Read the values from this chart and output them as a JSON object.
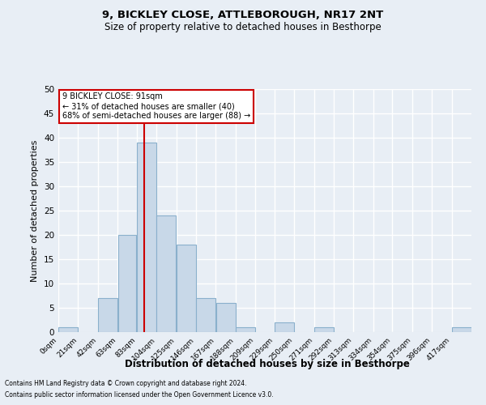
{
  "title1": "9, BICKLEY CLOSE, ATTLEBOROUGH, NR17 2NT",
  "title2": "Size of property relative to detached houses in Besthorpe",
  "xlabel": "Distribution of detached houses by size in Besthorpe",
  "ylabel": "Number of detached properties",
  "bin_edges": [
    0,
    21,
    42,
    63,
    83,
    104,
    125,
    146,
    167,
    188,
    209,
    229,
    250,
    271,
    292,
    313,
    334,
    354,
    375,
    396,
    417,
    438
  ],
  "bin_labels": [
    "0sqm",
    "21sqm",
    "42sqm",
    "63sqm",
    "83sqm",
    "104sqm",
    "125sqm",
    "146sqm",
    "167sqm",
    "188sqm",
    "209sqm",
    "229sqm",
    "250sqm",
    "271sqm",
    "292sqm",
    "313sqm",
    "334sqm",
    "354sqm",
    "375sqm",
    "396sqm",
    "417sqm"
  ],
  "bar_values": [
    1,
    0,
    7,
    20,
    39,
    24,
    18,
    7,
    6,
    1,
    0,
    2,
    0,
    1,
    0,
    0,
    0,
    0,
    0,
    0,
    1
  ],
  "bar_color": "#c8d8e8",
  "bar_edge_color": "#8ab0cc",
  "vline_x": 91,
  "vline_color": "#cc0000",
  "ylim": [
    0,
    50
  ],
  "yticks": [
    0,
    5,
    10,
    15,
    20,
    25,
    30,
    35,
    40,
    45,
    50
  ],
  "annotation_title": "9 BICKLEY CLOSE: 91sqm",
  "annotation_line1": "← 31% of detached houses are smaller (40)",
  "annotation_line2": "68% of semi-detached houses are larger (88) →",
  "annotation_box_color": "#ffffff",
  "annotation_box_edge": "#cc0000",
  "footer1": "Contains HM Land Registry data © Crown copyright and database right 2024.",
  "footer2": "Contains public sector information licensed under the Open Government Licence v3.0.",
  "background_color": "#e8eef5",
  "plot_bg_color": "#e8eef5",
  "grid_color": "#ffffff"
}
